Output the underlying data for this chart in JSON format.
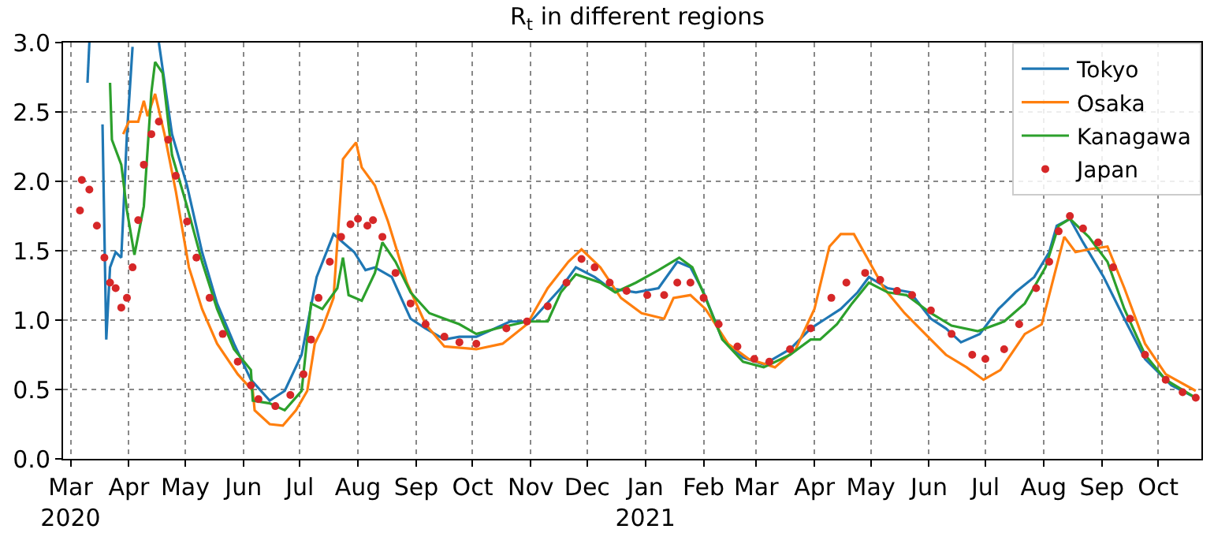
{
  "chart_data": {
    "type": "line",
    "title": "R$_{t}$ in different regions",
    "xlim": [
      "2020-02-26",
      "2021-10-24"
    ],
    "xticks": [
      {
        "value": "2020-03-01",
        "label": "Mar\n2020"
      },
      {
        "value": "2020-04-01",
        "label": "Apr"
      },
      {
        "value": "2020-05-01",
        "label": "May"
      },
      {
        "value": "2020-06-01",
        "label": "Jun"
      },
      {
        "value": "2020-07-01",
        "label": "Jul"
      },
      {
        "value": "2020-08-01",
        "label": "Aug"
      },
      {
        "value": "2020-09-01",
        "label": "Sep"
      },
      {
        "value": "2020-10-01",
        "label": "Oct"
      },
      {
        "value": "2020-11-01",
        "label": "Nov"
      },
      {
        "value": "2020-12-01",
        "label": "Dec"
      },
      {
        "value": "2021-01-01",
        "label": "Jan\n2021"
      },
      {
        "value": "2021-02-01",
        "label": "Feb"
      },
      {
        "value": "2021-03-01",
        "label": "Mar"
      },
      {
        "value": "2021-04-01",
        "label": "Apr"
      },
      {
        "value": "2021-05-01",
        "label": "May"
      },
      {
        "value": "2021-06-01",
        "label": "Jun"
      },
      {
        "value": "2021-07-01",
        "label": "Jul"
      },
      {
        "value": "2021-08-01",
        "label": "Aug"
      },
      {
        "value": "2021-09-01",
        "label": "Sep"
      },
      {
        "value": "2021-10-01",
        "label": "Oct"
      }
    ],
    "ylim": [
      0,
      3
    ],
    "yticks": [
      {
        "value": 0,
        "label": "0.0"
      },
      {
        "value": 0.5,
        "label": "0.5"
      },
      {
        "value": 1,
        "label": "1.0"
      },
      {
        "value": 1.5,
        "label": "1.5"
      },
      {
        "value": 2,
        "label": "2.0"
      },
      {
        "value": 2.5,
        "label": "2.5"
      },
      {
        "value": 3,
        "label": "3.0"
      }
    ],
    "grid": true,
    "legend": "top right",
    "line_style": "solid",
    "series": [
      {
        "name": "Tokyo",
        "color": "#1f77b4",
        "x": [
          "2020-03-10",
          "2020-03-11",
          "2020-03-14",
          "2020-03-18",
          "2020-03-20",
          "2020-03-22",
          "2020-03-25",
          "2020-03-28",
          "2020-03-31",
          "2020-04-03",
          "2020-04-10",
          "2020-04-17",
          "2020-04-24",
          "2020-05-02",
          "2020-05-10",
          "2020-05-18",
          "2020-05-27",
          "2020-06-05",
          "2020-06-15",
          "2020-06-23",
          "2020-07-02",
          "2020-07-10",
          "2020-07-19",
          "2020-07-24",
          "2020-07-30",
          "2020-08-05",
          "2020-08-10",
          "2020-08-19",
          "2020-08-29",
          "2020-09-06",
          "2020-09-16",
          "2020-09-24",
          "2020-10-03",
          "2020-10-21",
          "2020-11-01",
          "2020-11-17",
          "2020-11-25",
          "2020-12-05",
          "2020-12-13",
          "2020-12-27",
          "2021-01-08",
          "2021-01-18",
          "2021-01-25",
          "2021-02-01",
          "2021-02-11",
          "2021-02-22",
          "2021-03-05",
          "2021-03-19",
          "2021-03-30",
          "2021-04-07",
          "2021-04-15",
          "2021-04-24",
          "2021-04-30",
          "2021-05-10",
          "2021-05-22",
          "2021-06-02",
          "2021-06-10",
          "2021-06-18",
          "2021-06-28",
          "2021-07-08",
          "2021-07-17",
          "2021-07-27",
          "2021-08-04",
          "2021-08-08",
          "2021-08-15",
          "2021-08-22",
          "2021-09-02",
          "2021-09-13",
          "2021-09-24",
          "2021-10-08",
          "2021-10-21"
        ],
        "values": [
          2.71,
          3.0,
          null,
          2.41,
          0.86,
          1.38,
          1.49,
          1.45,
          2.34,
          2.97,
          null,
          3.0,
          2.34,
          1.97,
          1.49,
          1.12,
          0.83,
          0.57,
          0.42,
          0.49,
          0.75,
          1.31,
          1.62,
          1.56,
          1.49,
          1.36,
          1.38,
          1.31,
          1.01,
          0.94,
          0.86,
          0.88,
          0.88,
          0.99,
          0.99,
          1.23,
          1.38,
          1.31,
          1.23,
          1.2,
          1.23,
          1.42,
          1.38,
          1.2,
          0.86,
          0.73,
          0.68,
          0.79,
          0.94,
          1.01,
          1.08,
          1.2,
          1.31,
          1.23,
          1.2,
          1.01,
          0.94,
          0.84,
          0.9,
          1.08,
          1.2,
          1.31,
          1.49,
          1.68,
          1.73,
          1.56,
          1.31,
          1.01,
          0.72,
          0.53,
          0.44
        ]
      },
      {
        "name": "Osaka",
        "color": "#ff7f0e",
        "x": [
          "2020-03-29",
          "2020-04-01",
          "2020-04-06",
          "2020-04-09",
          "2020-04-11",
          "2020-04-15",
          "2020-04-20",
          "2020-04-26",
          "2020-05-03",
          "2020-05-10",
          "2020-05-18",
          "2020-05-29",
          "2020-06-06",
          "2020-06-07",
          "2020-06-15",
          "2020-06-22",
          "2020-06-29",
          "2020-07-05",
          "2020-07-09",
          "2020-07-13",
          "2020-07-19",
          "2020-07-24",
          "2020-07-28",
          "2020-07-31",
          "2020-08-03",
          "2020-08-10",
          "2020-08-17",
          "2020-08-27",
          "2020-09-06",
          "2020-09-16",
          "2020-10-03",
          "2020-10-17",
          "2020-10-30",
          "2020-11-10",
          "2020-11-21",
          "2020-11-28",
          "2020-12-08",
          "2020-12-19",
          "2020-12-30",
          "2021-01-11",
          "2021-01-16",
          "2021-01-25",
          "2021-02-02",
          "2021-02-14",
          "2021-02-25",
          "2021-03-11",
          "2021-03-22",
          "2021-04-01",
          "2021-04-09",
          "2021-04-15",
          "2021-04-22",
          "2021-04-29",
          "2021-05-08",
          "2021-05-19",
          "2021-05-30",
          "2021-06-10",
          "2021-06-21",
          "2021-06-30",
          "2021-07-09",
          "2021-07-22",
          "2021-07-31",
          "2021-08-07",
          "2021-08-12",
          "2021-08-18",
          "2021-08-25",
          "2021-09-04",
          "2021-09-13",
          "2021-09-24",
          "2021-10-05",
          "2021-10-21"
        ],
        "values": [
          2.34,
          2.43,
          2.43,
          2.58,
          2.47,
          2.63,
          2.34,
          1.93,
          1.38,
          1.08,
          0.83,
          0.61,
          0.49,
          0.35,
          0.25,
          0.24,
          0.35,
          0.49,
          0.83,
          0.94,
          1.16,
          2.16,
          2.23,
          2.28,
          2.1,
          1.97,
          1.71,
          1.27,
          0.97,
          0.81,
          0.79,
          0.83,
          0.97,
          1.23,
          1.42,
          1.51,
          1.38,
          1.16,
          1.05,
          1.01,
          1.16,
          1.18,
          1.08,
          0.83,
          0.72,
          0.66,
          0.79,
          1.08,
          1.53,
          1.62,
          1.62,
          1.45,
          1.23,
          1.05,
          0.9,
          0.75,
          0.66,
          0.57,
          0.64,
          0.9,
          0.97,
          1.34,
          1.6,
          1.49,
          1.51,
          1.53,
          1.23,
          0.83,
          0.61,
          0.49
        ]
      },
      {
        "name": "Kanagawa",
        "color": "#2ca02c",
        "x": [
          "2020-03-22",
          "2020-03-23",
          "2020-03-28",
          "2020-03-31",
          "2020-04-04",
          "2020-04-09",
          "2020-04-13",
          "2020-04-15",
          "2020-04-19",
          "2020-04-24",
          "2020-05-02",
          "2020-05-10",
          "2020-05-18",
          "2020-05-27",
          "2020-06-05",
          "2020-06-06",
          "2020-06-15",
          "2020-06-23",
          "2020-07-02",
          "2020-07-07",
          "2020-07-13",
          "2020-07-21",
          "2020-07-24",
          "2020-07-27",
          "2020-08-03",
          "2020-08-10",
          "2020-08-14",
          "2020-08-21",
          "2020-08-29",
          "2020-09-08",
          "2020-09-16",
          "2020-09-24",
          "2020-10-03",
          "2020-10-14",
          "2020-10-30",
          "2020-11-10",
          "2020-11-17",
          "2020-11-25",
          "2020-12-08",
          "2020-12-16",
          "2020-12-27",
          "2021-01-08",
          "2021-01-19",
          "2021-01-26",
          "2021-02-02",
          "2021-02-11",
          "2021-02-22",
          "2021-03-05",
          "2021-03-19",
          "2021-03-30",
          "2021-04-04",
          "2021-04-13",
          "2021-04-21",
          "2021-04-30",
          "2021-05-10",
          "2021-05-20",
          "2021-06-02",
          "2021-06-13",
          "2021-06-27",
          "2021-07-11",
          "2021-07-22",
          "2021-08-02",
          "2021-08-09",
          "2021-08-15",
          "2021-08-25",
          "2021-09-04",
          "2021-09-13",
          "2021-09-24",
          "2021-10-05",
          "2021-10-21"
        ],
        "values": [
          2.71,
          2.3,
          2.12,
          1.79,
          1.47,
          1.82,
          2.64,
          2.86,
          2.78,
          2.19,
          1.82,
          1.42,
          1.08,
          0.79,
          0.64,
          0.42,
          0.4,
          0.35,
          0.49,
          1.12,
          1.08,
          1.23,
          1.45,
          1.18,
          1.14,
          1.34,
          1.56,
          1.42,
          1.2,
          1.05,
          1.01,
          0.97,
          0.9,
          0.94,
          0.99,
          0.99,
          1.2,
          1.33,
          1.27,
          1.2,
          1.27,
          1.36,
          1.45,
          1.38,
          1.16,
          0.86,
          0.7,
          0.66,
          0.75,
          0.86,
          0.86,
          0.97,
          1.12,
          1.27,
          1.2,
          1.18,
          1.05,
          0.96,
          0.92,
          0.99,
          1.12,
          1.38,
          1.68,
          1.73,
          1.6,
          1.42,
          1.08,
          0.75,
          0.57,
          0.44
        ]
      },
      {
        "name": "Japan",
        "color": "#d62728",
        "type": "scatter",
        "marker": "circle",
        "x": [
          "2020-03-06",
          "2020-03-07",
          "2020-03-11",
          "2020-03-15",
          "2020-03-19",
          "2020-03-22",
          "2020-03-25",
          "2020-03-28",
          "2020-03-31",
          "2020-04-03",
          "2020-04-06",
          "2020-04-09",
          "2020-04-13",
          "2020-04-17",
          "2020-04-22",
          "2020-04-26",
          "2020-05-02",
          "2020-05-07",
          "2020-05-14",
          "2020-05-21",
          "2020-05-29",
          "2020-06-05",
          "2020-06-09",
          "2020-06-18",
          "2020-06-26",
          "2020-07-03",
          "2020-07-07",
          "2020-07-11",
          "2020-07-17",
          "2020-07-23",
          "2020-07-28",
          "2020-08-01",
          "2020-08-06",
          "2020-08-09",
          "2020-08-14",
          "2020-08-21",
          "2020-08-29",
          "2020-09-06",
          "2020-09-16",
          "2020-09-24",
          "2020-10-03",
          "2020-10-19",
          "2020-10-30",
          "2020-11-10",
          "2020-11-20",
          "2020-11-28",
          "2020-12-05",
          "2020-12-13",
          "2020-12-22",
          "2021-01-02",
          "2021-01-11",
          "2021-01-18",
          "2021-01-25",
          "2021-02-01",
          "2021-02-09",
          "2021-02-19",
          "2021-02-28",
          "2021-03-08",
          "2021-03-19",
          "2021-03-30",
          "2021-04-10",
          "2021-04-18",
          "2021-04-28",
          "2021-05-06",
          "2021-05-15",
          "2021-05-23",
          "2021-06-02",
          "2021-06-13",
          "2021-06-24",
          "2021-07-01",
          "2021-07-11",
          "2021-07-19",
          "2021-07-28",
          "2021-08-04",
          "2021-08-09",
          "2021-08-15",
          "2021-08-22",
          "2021-08-30",
          "2021-09-07",
          "2021-09-16",
          "2021-09-24",
          "2021-10-05",
          "2021-10-14",
          "2021-10-21"
        ],
        "values": [
          1.79,
          2.01,
          1.94,
          1.68,
          1.45,
          1.27,
          1.23,
          1.09,
          1.16,
          1.38,
          1.72,
          2.12,
          2.34,
          2.43,
          2.3,
          2.04,
          1.71,
          1.45,
          1.16,
          0.9,
          0.7,
          0.53,
          0.43,
          0.38,
          0.46,
          0.61,
          0.86,
          1.16,
          1.42,
          1.6,
          1.69,
          1.73,
          1.68,
          1.72,
          1.6,
          1.34,
          1.12,
          0.97,
          0.88,
          0.84,
          0.83,
          0.94,
          0.99,
          1.1,
          1.27,
          1.44,
          1.38,
          1.27,
          1.21,
          1.18,
          1.18,
          1.27,
          1.27,
          1.16,
          0.97,
          0.81,
          0.72,
          0.7,
          0.79,
          0.94,
          1.16,
          1.27,
          1.34,
          1.29,
          1.21,
          1.18,
          1.07,
          0.9,
          0.75,
          0.72,
          0.79,
          0.97,
          1.23,
          1.42,
          1.64,
          1.75,
          1.66,
          1.56,
          1.38,
          1.01,
          0.75,
          0.57,
          0.48,
          0.44
        ]
      }
    ]
  }
}
